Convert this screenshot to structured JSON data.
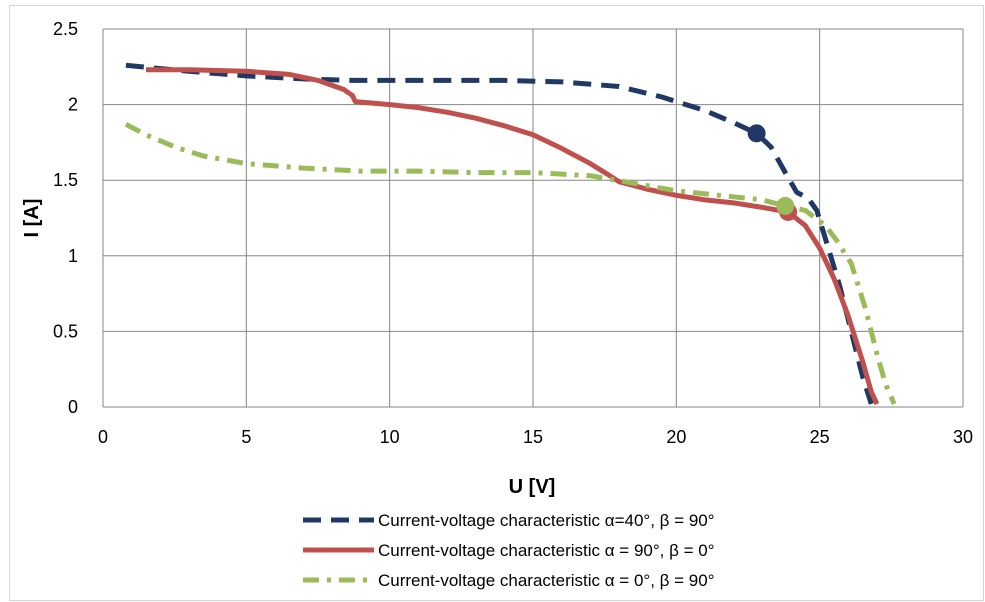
{
  "chart_data": {
    "type": "line",
    "xlabel": "U [V]",
    "ylabel": "I [A]",
    "xlim": [
      0,
      30
    ],
    "ylim": [
      0,
      2.5
    ],
    "x_ticks": [
      0,
      5,
      10,
      15,
      20,
      25,
      30
    ],
    "y_ticks": [
      0,
      0.5,
      1,
      1.5,
      2,
      2.5
    ],
    "x_tick_labels": [
      "0",
      "5",
      "10",
      "15",
      "20",
      "25",
      "30"
    ],
    "y_tick_labels": [
      "0",
      "0.5",
      "1",
      "1.5",
      "2",
      "2.5"
    ],
    "grid": true,
    "legend_position": "bottom",
    "series": [
      {
        "name": "Current-voltage characteristic α=40°, β = 90°",
        "color": "#1f3864",
        "dash": "dash",
        "x": [
          0.8,
          3,
          5,
          7,
          8.7,
          10,
          12,
          14,
          16,
          18,
          19.5,
          21,
          22,
          22.8,
          23.3,
          23.8,
          24.2,
          24.6,
          24.9,
          25.3,
          25.7,
          26.1,
          26.5,
          26.8
        ],
        "y": [
          2.26,
          2.22,
          2.19,
          2.17,
          2.16,
          2.16,
          2.16,
          2.16,
          2.15,
          2.12,
          2.05,
          1.96,
          1.88,
          1.81,
          1.72,
          1.55,
          1.42,
          1.38,
          1.3,
          1.05,
          0.8,
          0.5,
          0.2,
          0.02
        ],
        "marker": {
          "x": 22.8,
          "y": 1.81
        }
      },
      {
        "name": "Current-voltage characteristic α = 90°, β = 0°",
        "color": "#c0504d",
        "dash": "solid",
        "x": [
          1.5,
          3,
          5,
          6.5,
          7.5,
          8.4,
          8.7,
          8.8,
          10,
          11,
          12,
          13,
          14,
          15,
          16,
          17,
          17.6,
          18,
          18.4,
          19,
          20,
          21,
          22,
          23,
          23.9,
          24.5,
          25,
          25.5,
          26,
          26.5,
          26.8,
          27
        ],
        "y": [
          2.23,
          2.23,
          2.22,
          2.2,
          2.16,
          2.1,
          2.06,
          2.02,
          2.0,
          1.98,
          1.95,
          1.91,
          1.86,
          1.8,
          1.71,
          1.61,
          1.54,
          1.49,
          1.47,
          1.44,
          1.4,
          1.37,
          1.35,
          1.32,
          1.29,
          1.2,
          1.05,
          0.85,
          0.6,
          0.3,
          0.1,
          0.02
        ],
        "marker": {
          "x": 23.9,
          "y": 1.29
        }
      },
      {
        "name": "Current-voltage characteristic α = 0°, β = 90°",
        "color": "#9bbb59",
        "dash": "dashdot",
        "x": [
          0.8,
          1.5,
          2.5,
          3.5,
          5,
          7,
          9,
          11,
          13,
          15,
          17,
          18.5,
          20,
          21.5,
          23,
          23.8,
          24.5,
          25.2,
          25.6,
          26.1,
          26.6,
          27,
          27.3,
          27.6
        ],
        "y": [
          1.87,
          1.8,
          1.72,
          1.66,
          1.61,
          1.58,
          1.56,
          1.56,
          1.55,
          1.55,
          1.53,
          1.48,
          1.43,
          1.4,
          1.37,
          1.33,
          1.3,
          1.2,
          1.1,
          0.95,
          0.65,
          0.35,
          0.15,
          0.02
        ],
        "marker": {
          "x": 23.8,
          "y": 1.33
        }
      }
    ]
  }
}
